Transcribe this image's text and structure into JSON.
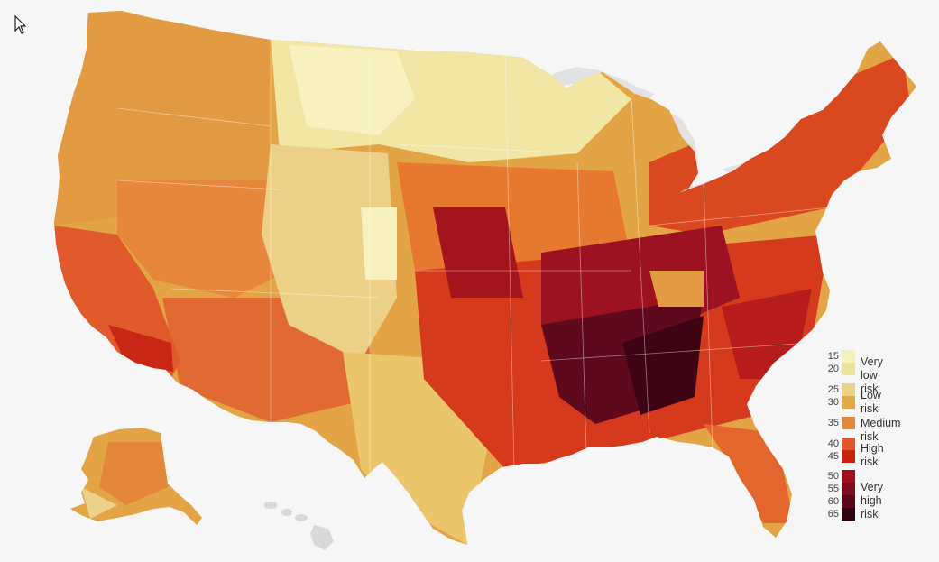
{
  "map": {
    "colors": {
      "background": "#f6f6f6",
      "lakes": "#e2e2e2",
      "other_land": "#d9d9d9",
      "very_low": "#f3efb6",
      "low": "#e6c25e",
      "medium": "#e4893b",
      "high": "#d43f1e",
      "very_high": "#5b0a1e"
    }
  },
  "legend": {
    "groups": [
      {
        "label": "Very low risk",
        "values": [
          "15",
          "20"
        ],
        "colors": [
          "#f5f1bd",
          "#ede29a"
        ]
      },
      {
        "label": "Low risk",
        "values": [
          "25",
          "30"
        ],
        "colors": [
          "#ecd383",
          "#e2aa45"
        ]
      },
      {
        "label": "Medium risk",
        "values": [
          "35"
        ],
        "colors": [
          "#e4893b"
        ]
      },
      {
        "label": "High risk",
        "values": [
          "40",
          "45"
        ],
        "colors": [
          "#e5552b",
          "#c8230f"
        ]
      },
      {
        "label": "Very high risk",
        "label_lines": [
          "Very",
          "high risk"
        ],
        "values": [
          "50",
          "55",
          "60",
          "65"
        ],
        "colors": [
          "#a3101c",
          "#7e0d1d",
          "#5a081a",
          "#300210"
        ]
      }
    ]
  }
}
